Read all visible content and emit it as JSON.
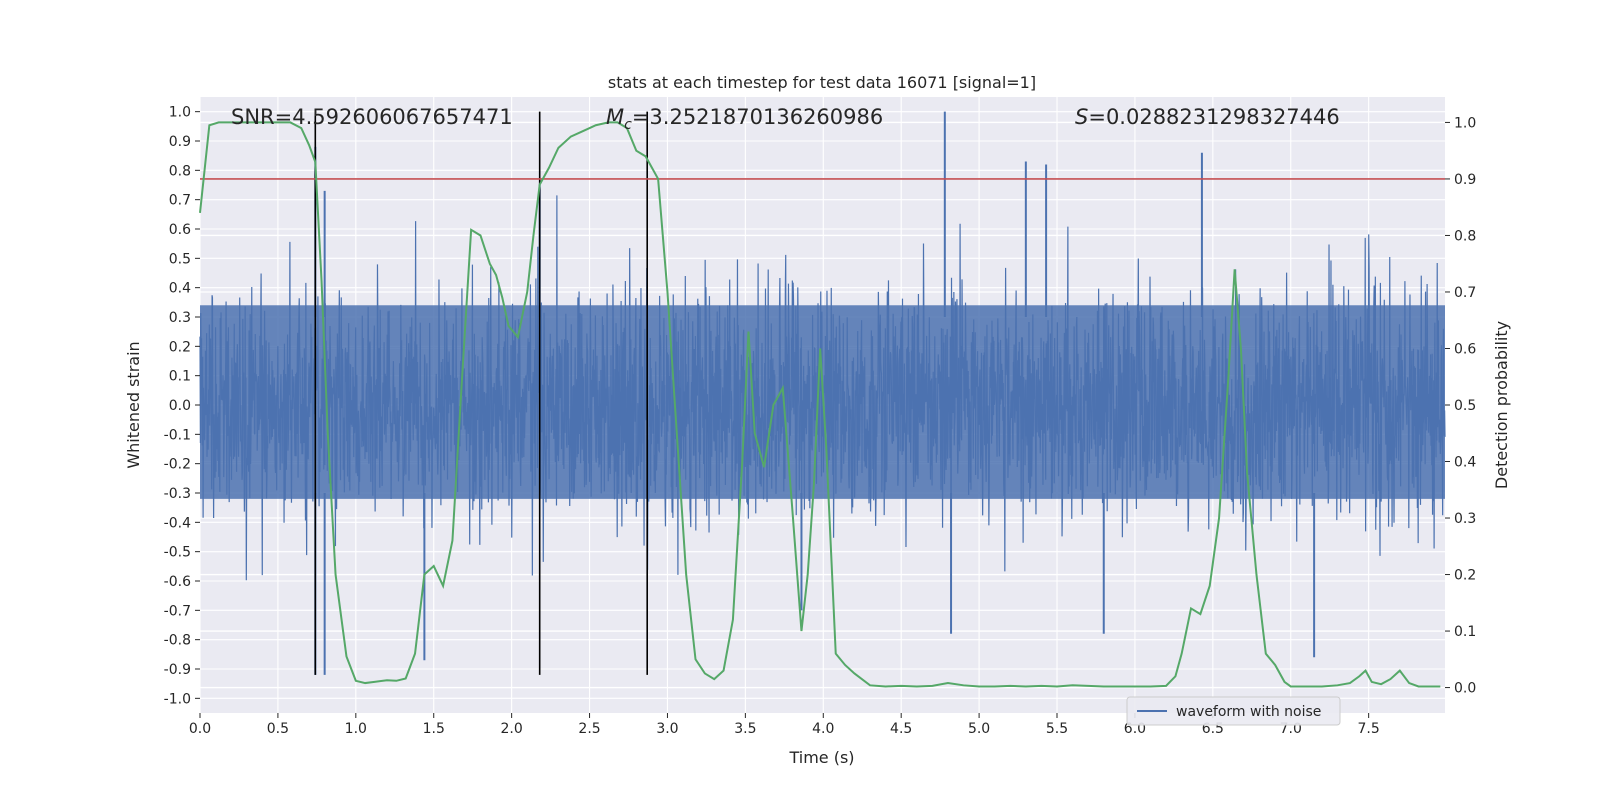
{
  "chart_data": {
    "type": "line",
    "title": "stats at each timestep for test data 16071 [signal=1]",
    "xlabel": "Time (s)",
    "ylabel_left": "Whitened strain",
    "ylabel_right": "Detection probability",
    "xlim": [
      0.0,
      7.99
    ],
    "ylim_left": [
      -1.05,
      1.05
    ],
    "ylim_right": [
      -0.045,
      1.045
    ],
    "x_ticks": [
      "0.0",
      "0.5",
      "1.0",
      "1.5",
      "2.0",
      "2.5",
      "3.0",
      "3.5",
      "4.0",
      "4.5",
      "5.0",
      "5.5",
      "6.0",
      "6.5",
      "7.0",
      "7.5"
    ],
    "x_tick_values": [
      0.0,
      0.5,
      1.0,
      1.5,
      2.0,
      2.5,
      3.0,
      3.5,
      4.0,
      4.5,
      5.0,
      5.5,
      6.0,
      6.5,
      7.0,
      7.5
    ],
    "y_left_ticks": [
      "1.0",
      "0.9",
      "0.8",
      "0.7",
      "0.6",
      "0.5",
      "0.4",
      "0.3",
      "0.2",
      "0.1",
      "0.0",
      "-0.1",
      "-0.2",
      "-0.3",
      "-0.4",
      "-0.5",
      "-0.6",
      "-0.7",
      "-0.8",
      "-0.9",
      "-1.0"
    ],
    "y_left_tick_values": [
      1.0,
      0.9,
      0.8,
      0.7,
      0.6,
      0.5,
      0.4,
      0.3,
      0.2,
      0.1,
      0.0,
      -0.1,
      -0.2,
      -0.3,
      -0.4,
      -0.5,
      -0.6,
      -0.7,
      -0.8,
      -0.9,
      -1.0
    ],
    "y_right_ticks": [
      "1.0",
      "0.9",
      "0.8",
      "0.7",
      "0.6",
      "0.5",
      "0.4",
      "0.3",
      "0.2",
      "0.1",
      "0.0"
    ],
    "y_right_tick_values": [
      1.0,
      0.9,
      0.8,
      0.7,
      0.6,
      0.5,
      0.4,
      0.3,
      0.2,
      0.1,
      0.0
    ],
    "grid": true,
    "annotations": {
      "snr": "SNR=4.592606067657471",
      "mc_symbol": "M",
      "mc_sub": "c",
      "mc_value": "=3.2521870136260986",
      "s_symbol": "S",
      "s_value": "=0.0288231298327446"
    },
    "legend": {
      "placement": "lower-right",
      "entries": [
        "waveform with noise"
      ]
    },
    "threshold": {
      "axis": "right",
      "value": 0.9,
      "color": "#c44e52"
    },
    "vertical_lines": [
      0.74,
      2.18,
      2.87
    ],
    "vertical_line_range_left": [
      -0.92,
      1.0
    ],
    "waveform": {
      "name": "waveform with noise",
      "color": "#4c72b0",
      "seed": 16071,
      "dense_band": [
        -0.32,
        0.34
      ],
      "peaks_up": [
        [
          0.74,
          0.88
        ],
        [
          0.8,
          0.73
        ],
        [
          4.78,
          1.0
        ],
        [
          5.3,
          0.83
        ],
        [
          5.43,
          0.82
        ],
        [
          6.43,
          0.86
        ],
        [
          2.18,
          0.75
        ]
      ],
      "peaks_down": [
        [
          0.8,
          -0.92
        ],
        [
          0.74,
          -0.92
        ],
        [
          1.44,
          -0.87
        ],
        [
          4.82,
          -0.78
        ],
        [
          5.8,
          -0.78
        ],
        [
          7.15,
          -0.86
        ],
        [
          3.86,
          -0.7
        ]
      ]
    },
    "detection_probability": {
      "axis": "right",
      "color": "#55a868",
      "x": [
        0.0,
        0.06,
        0.12,
        0.2,
        0.3,
        0.4,
        0.5,
        0.58,
        0.65,
        0.7,
        0.74,
        0.78,
        0.82,
        0.87,
        0.94,
        1.0,
        1.06,
        1.12,
        1.2,
        1.26,
        1.32,
        1.38,
        1.44,
        1.5,
        1.56,
        1.62,
        1.68,
        1.74,
        1.8,
        1.86,
        1.9,
        1.94,
        1.98,
        2.04,
        2.1,
        2.14,
        2.18,
        2.24,
        2.3,
        2.38,
        2.46,
        2.54,
        2.62,
        2.68,
        2.74,
        2.8,
        2.86,
        2.9,
        2.94,
        3.0,
        3.06,
        3.12,
        3.18,
        3.24,
        3.3,
        3.36,
        3.42,
        3.48,
        3.52,
        3.56,
        3.62,
        3.68,
        3.74,
        3.8,
        3.86,
        3.9,
        3.94,
        3.98,
        4.02,
        4.08,
        4.14,
        4.2,
        4.3,
        4.4,
        4.5,
        4.6,
        4.7,
        4.8,
        4.9,
        5.0,
        5.1,
        5.2,
        5.3,
        5.4,
        5.5,
        5.6,
        5.7,
        5.8,
        5.9,
        6.0,
        6.1,
        6.2,
        6.26,
        6.3,
        6.36,
        6.42,
        6.48,
        6.54,
        6.6,
        6.64,
        6.68,
        6.72,
        6.78,
        6.84,
        6.9,
        6.96,
        7.0,
        7.1,
        7.2,
        7.3,
        7.38,
        7.44,
        7.48,
        7.52,
        7.58,
        7.64,
        7.7,
        7.76,
        7.82,
        7.88,
        7.96
      ],
      "y": [
        0.84,
        0.995,
        1.0,
        1.0,
        1.0,
        1.0,
        1.0,
        1.0,
        0.99,
        0.96,
        0.93,
        0.72,
        0.45,
        0.2,
        0.055,
        0.012,
        0.008,
        0.01,
        0.013,
        0.012,
        0.016,
        0.06,
        0.2,
        0.215,
        0.18,
        0.26,
        0.54,
        0.81,
        0.8,
        0.75,
        0.73,
        0.69,
        0.64,
        0.62,
        0.7,
        0.8,
        0.89,
        0.92,
        0.955,
        0.975,
        0.985,
        0.995,
        1.0,
        1.0,
        0.99,
        0.95,
        0.94,
        0.92,
        0.9,
        0.7,
        0.45,
        0.2,
        0.05,
        0.025,
        0.015,
        0.03,
        0.12,
        0.4,
        0.63,
        0.45,
        0.39,
        0.5,
        0.53,
        0.32,
        0.1,
        0.2,
        0.36,
        0.6,
        0.42,
        0.06,
        0.04,
        0.025,
        0.004,
        0.002,
        0.003,
        0.002,
        0.003,
        0.008,
        0.004,
        0.002,
        0.002,
        0.003,
        0.002,
        0.003,
        0.002,
        0.004,
        0.003,
        0.002,
        0.002,
        0.002,
        0.002,
        0.003,
        0.02,
        0.06,
        0.14,
        0.13,
        0.18,
        0.3,
        0.55,
        0.74,
        0.6,
        0.38,
        0.2,
        0.06,
        0.04,
        0.01,
        0.002,
        0.002,
        0.002,
        0.004,
        0.008,
        0.02,
        0.03,
        0.01,
        0.006,
        0.015,
        0.03,
        0.008,
        0.002,
        0.002,
        0.002
      ]
    }
  }
}
